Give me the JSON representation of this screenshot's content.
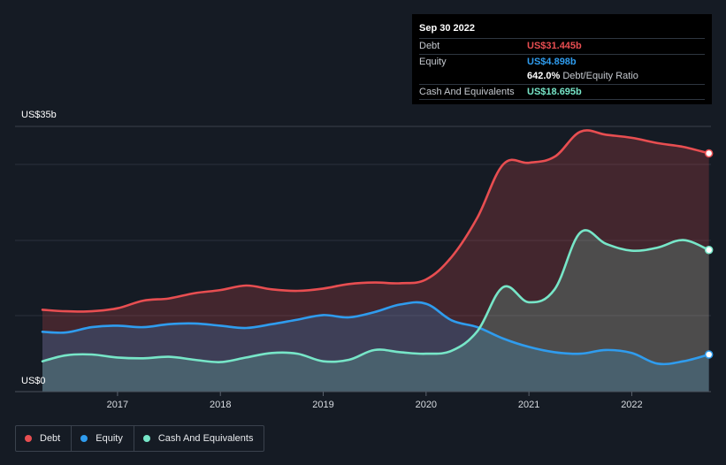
{
  "tooltip": {
    "date": "Sep 30 2022",
    "rows": [
      {
        "label": "Debt",
        "value": "US$31.445b",
        "color": "#e84e51"
      },
      {
        "label": "Equity",
        "value": "US$4.898b",
        "color": "#2f9cee"
      },
      {
        "label": "",
        "value": "642.0%",
        "sub": "Debt/Equity Ratio",
        "color": "#ffffff"
      },
      {
        "label": "Cash And Equivalents",
        "value": "US$18.695b",
        "color": "#77e6c8"
      }
    ]
  },
  "y_axis": {
    "top_label": "US$35b",
    "bottom_label": "US$0"
  },
  "legend": [
    {
      "label": "Debt",
      "color": "#e84e51"
    },
    {
      "label": "Equity",
      "color": "#2f9cee"
    },
    {
      "label": "Cash And Equivalents",
      "color": "#77e6c8"
    }
  ],
  "chart_data": {
    "type": "area",
    "x_tick_labels": [
      "2017",
      "2018",
      "2019",
      "2020",
      "2021",
      "2022"
    ],
    "ylim": [
      0,
      35
    ],
    "yticks": [
      0,
      35
    ],
    "xlim": [
      2016.27,
      2022.77
    ],
    "grid": true,
    "legend_placement": "bottom-left",
    "series": [
      {
        "name": "Debt",
        "color": "#e84e51",
        "x": [
          2016.27,
          2016.5,
          2016.75,
          2017.0,
          2017.25,
          2017.5,
          2017.75,
          2018.0,
          2018.25,
          2018.5,
          2018.75,
          2019.0,
          2019.25,
          2019.5,
          2019.75,
          2020.0,
          2020.25,
          2020.5,
          2020.75,
          2021.0,
          2021.25,
          2021.5,
          2021.75,
          2022.0,
          2022.25,
          2022.5,
          2022.75
        ],
        "values": [
          10.8,
          10.6,
          10.6,
          11.0,
          12.0,
          12.3,
          13.0,
          13.4,
          14.0,
          13.5,
          13.3,
          13.6,
          14.2,
          14.4,
          14.3,
          14.8,
          17.8,
          23.0,
          30.0,
          30.2,
          31.0,
          34.3,
          33.9,
          33.5,
          32.8,
          32.3,
          31.445
        ]
      },
      {
        "name": "Equity",
        "color": "#2f9cee",
        "x": [
          2016.27,
          2016.5,
          2016.75,
          2017.0,
          2017.25,
          2017.5,
          2017.75,
          2018.0,
          2018.25,
          2018.5,
          2018.75,
          2019.0,
          2019.25,
          2019.5,
          2019.75,
          2020.0,
          2020.25,
          2020.5,
          2020.75,
          2021.0,
          2021.25,
          2021.5,
          2021.75,
          2022.0,
          2022.25,
          2022.5,
          2022.75
        ],
        "values": [
          7.9,
          7.8,
          8.5,
          8.7,
          8.5,
          8.9,
          9.0,
          8.7,
          8.4,
          8.9,
          9.5,
          10.1,
          9.8,
          10.5,
          11.5,
          11.6,
          9.4,
          8.5,
          7.0,
          5.9,
          5.2,
          5.0,
          5.5,
          5.1,
          3.7,
          4.0,
          4.898
        ]
      },
      {
        "name": "Cash And Equivalents",
        "color": "#77e6c8",
        "x": [
          2016.27,
          2016.5,
          2016.75,
          2017.0,
          2017.25,
          2017.5,
          2017.75,
          2018.0,
          2018.25,
          2018.5,
          2018.75,
          2019.0,
          2019.25,
          2019.5,
          2019.75,
          2020.0,
          2020.25,
          2020.5,
          2020.75,
          2021.0,
          2021.25,
          2021.5,
          2021.75,
          2022.0,
          2022.25,
          2022.5,
          2022.75
        ],
        "values": [
          4.0,
          4.8,
          4.9,
          4.5,
          4.4,
          4.6,
          4.2,
          3.9,
          4.5,
          5.1,
          5.0,
          4.0,
          4.2,
          5.5,
          5.2,
          5.0,
          5.4,
          8.0,
          13.8,
          11.8,
          13.5,
          21.0,
          19.5,
          18.6,
          19.0,
          20.0,
          18.695
        ]
      }
    ]
  }
}
